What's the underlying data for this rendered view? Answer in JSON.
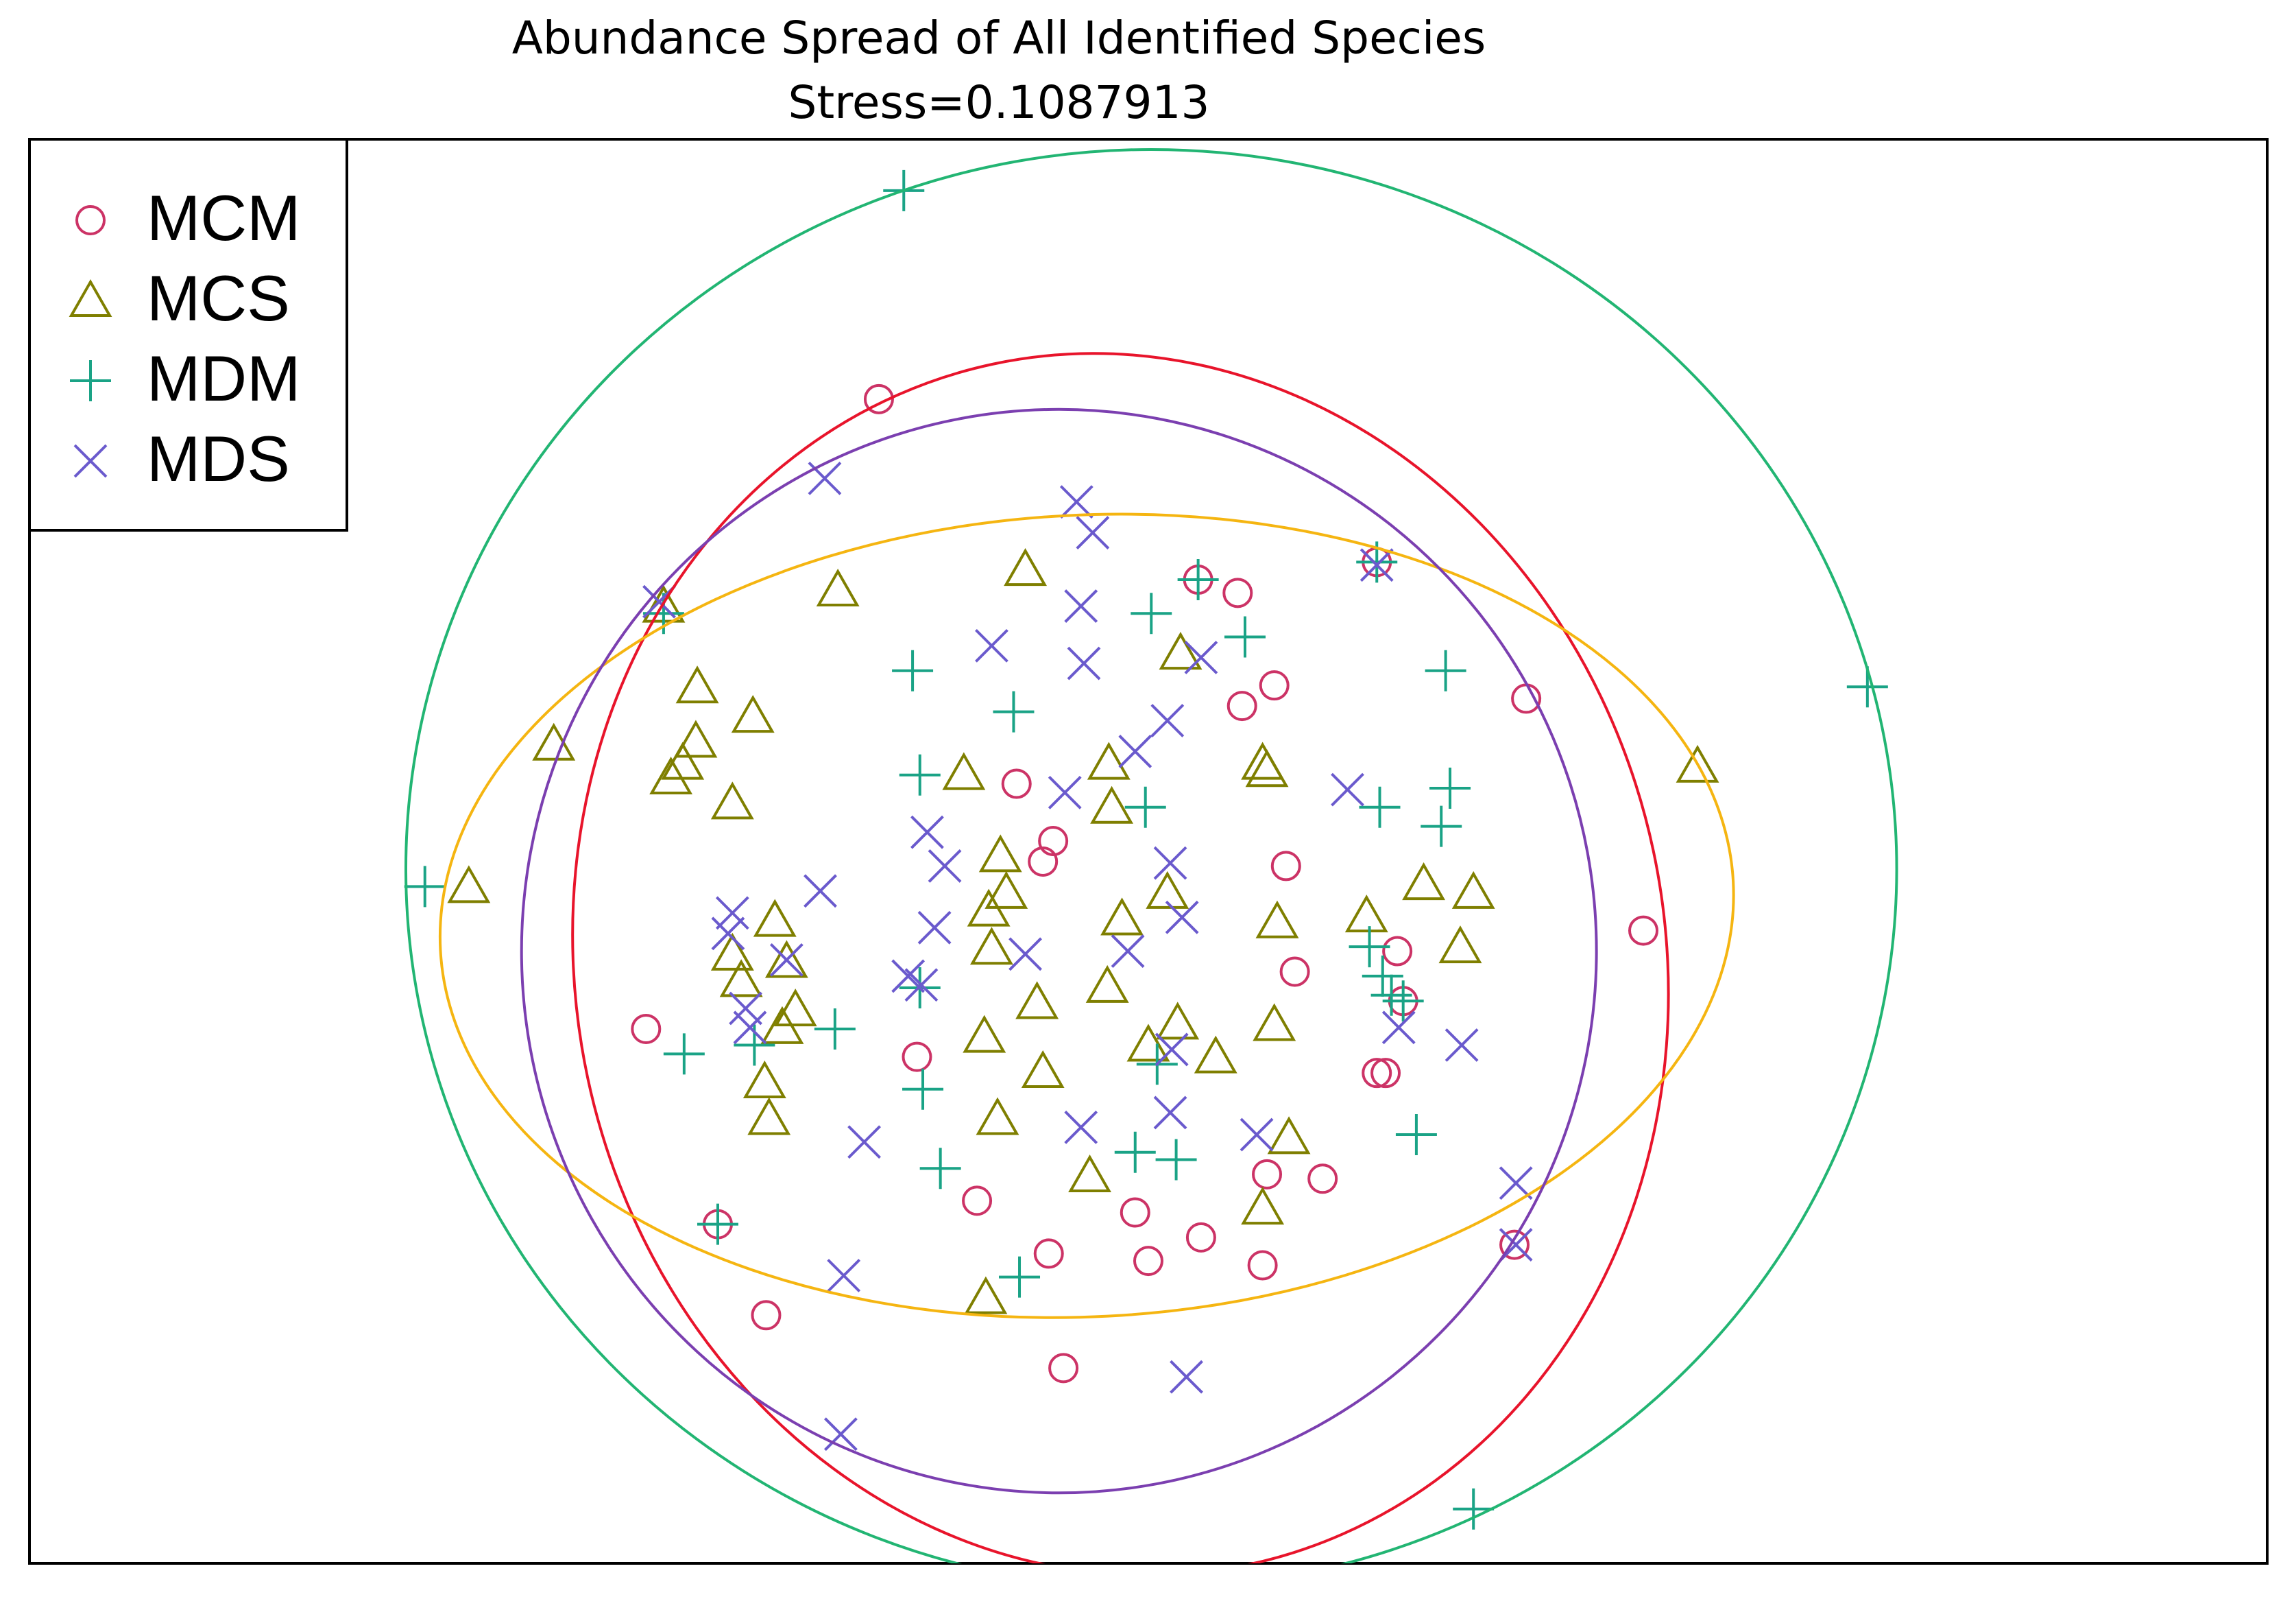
{
  "chart_data": {
    "type": "scatter",
    "title": "Abundance Spread of All Identified Species",
    "subtitle": "Stress=0.1087913",
    "xlim": [
      0,
      1528
    ],
    "ylim": [
      0,
      970
    ],
    "legend": "top-left",
    "series": [
      {
        "name": "MCM",
        "color": "#cc3366",
        "marker": "circle",
        "ellipse_color": "#e8142b",
        "ellipse": {
          "cx": 745,
          "cy": 408,
          "rx": 372,
          "ry": 418,
          "angle": 12
        },
        "x": [
          580,
          825,
          850,
          828,
          1022,
          674,
          699,
          692,
          858,
          1102,
          934,
          864,
          421,
          606,
          920,
          926,
          938,
          845,
          883,
          647,
          755,
          800,
          696,
          764,
          842,
          1014,
          503,
          706,
          470,
          798,
          920
        ],
        "y": [
          793,
          661,
          598,
          584,
          589,
          531,
          492,
          478,
          475,
          431,
          417,
          403,
          364,
          345,
          334,
          334,
          383,
          265,
          262,
          247,
          239,
          222,
          211,
          206,
          203,
          217,
          169,
          133,
          231,
          670,
          682
        ]
      },
      {
        "name": "MCS",
        "color": "#7f7f00",
        "marker": "triangle",
        "ellipse_color": "#f5b511",
        "ellipse": {
          "cx": 722,
          "cy": 441,
          "rx": 442,
          "ry": 273,
          "angle": 3
        },
        "x": [
          680,
          552,
          433,
          786,
          456,
          494,
          358,
          455,
          446,
          438,
          480,
          638,
          737,
          842,
          845,
          739,
          1139,
          300,
          663,
          667,
          655,
          657,
          777,
          746,
          852,
          913,
          952,
          986,
          977,
          509,
          480,
          517,
          486,
          523,
          514,
          736,
          688,
          652,
          692,
          784,
          764,
          810,
          850,
          502,
          505,
          661,
          860,
          724,
          842,
          653
        ],
        "y": [
          677,
          663,
          652,
          620,
          597,
          577,
          558,
          560,
          545,
          535,
          518,
          538,
          545,
          545,
          540,
          515,
          543,
          461,
          482,
          457,
          445,
          419,
          457,
          439,
          437,
          441,
          463,
          457,
          420,
          438,
          415,
          410,
          397,
          377,
          365,
          393,
          382,
          359,
          335,
          368,
          353,
          345,
          367,
          328,
          303,
          303,
          290,
          264,
          242,
          181
        ]
      },
      {
        "name": "MDM",
        "color": "#1aa386",
        "marker": "plus",
        "ellipse_color": "#22b573",
        "ellipse": {
          "cx": 766,
          "cy": 473,
          "rx": 509,
          "ry": 490,
          "angle": 0
        },
        "x": [
          597,
          433,
          798,
          766,
          830,
          920,
          603,
          672,
          967,
          608,
          762,
          922,
          970,
          964,
          270,
          1255,
          608,
          550,
          447,
          495,
          610,
          915,
          924,
          930,
          938,
          770,
          947,
          622,
          755,
          783,
          470,
          676,
          986
        ],
        "y": [
          935,
          647,
          670,
          647,
          631,
          682,
          608,
          580,
          608,
          537,
          515,
          515,
          528,
          502,
          461,
          597,
          392,
          364,
          347,
          353,
          323,
          420,
          400,
          387,
          383,
          340,
          292,
          269,
          280,
          275,
          231,
          195,
          37
        ]
      },
      {
        "name": "MDS",
        "color": "#6a5acd",
        "marker": "x",
        "ellipse_color": "#7b3fb0",
        "ellipse": {
          "cx": 703,
          "cy": 417,
          "rx": 367,
          "ry": 369,
          "angle": 0
        },
        "x": [
          543,
          715,
          726,
          920,
          430,
          718,
          657,
          720,
          800,
          777,
          755,
          900,
          707,
          613,
          625,
          540,
          480,
          477,
          618,
          779,
          787,
          750,
          680,
          517,
          600,
          489,
          492,
          935,
          978,
          780,
          570,
          718,
          779,
          838,
          1015,
          1015,
          556,
          790,
          554,
          609
        ],
        "y": [
          739,
          723,
          702,
          680,
          655,
          652,
          625,
          613,
          617,
          574,
          553,
          527,
          525,
          498,
          475,
          458,
          443,
          429,
          433,
          477,
          440,
          417,
          415,
          411,
          400,
          378,
          365,
          365,
          353,
          350,
          287,
          297,
          307,
          292,
          259,
          217,
          196,
          127,
          88,
          394
        ]
      }
    ]
  }
}
